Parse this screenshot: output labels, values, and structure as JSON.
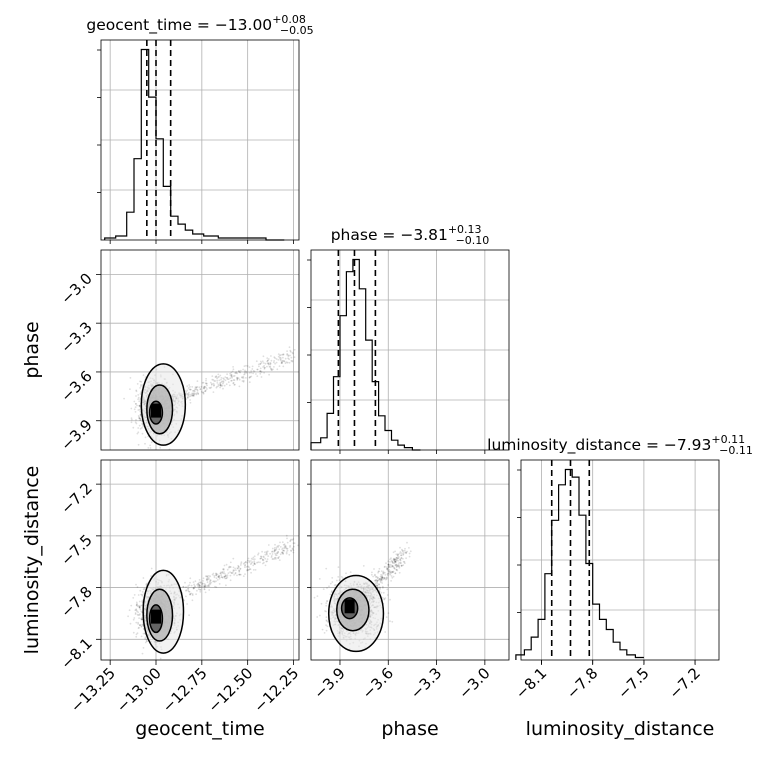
{
  "chart_data": {
    "type": "corner",
    "grid": true,
    "parameters": [
      "geocent_time",
      "phase",
      "luminosity_distance"
    ],
    "titles": [
      {
        "param": "geocent_time",
        "prefix": "geocent_time = ",
        "value": "−13.00",
        "plus": "+0.08",
        "minus": "−0.05"
      },
      {
        "param": "phase",
        "prefix": "phase = ",
        "value": "−3.81",
        "plus": "+0.13",
        "minus": "−0.10"
      },
      {
        "param": "luminosity_distance",
        "prefix": "luminosity_distance = ",
        "value": "−7.93",
        "plus": "+0.11",
        "minus": "−0.11"
      }
    ],
    "axes": {
      "geocent_time": {
        "range": [
          -13.3,
          -12.22
        ],
        "ticks": [
          -13.25,
          -13.0,
          -12.75,
          -12.5,
          -12.25
        ],
        "tick_labels": [
          "−13.25",
          "−13.00",
          "−12.75",
          "−12.50",
          "−12.25"
        ]
      },
      "phase": {
        "range": [
          -4.08,
          -2.85
        ],
        "ticks": [
          -3.9,
          -3.6,
          -3.3,
          -3.0
        ],
        "tick_labels": [
          "−3.9",
          "−3.6",
          "−3.3",
          "−3.0"
        ]
      },
      "luminosity_distance": {
        "range": [
          -8.22,
          -7.06
        ],
        "ticks": [
          -8.1,
          -7.8,
          -7.5,
          -7.2
        ],
        "tick_labels": [
          "−8.1",
          "−7.8",
          "−7.5",
          "−7.2"
        ]
      }
    },
    "histograms": [
      {
        "param": "geocent_time",
        "bin_edges": [
          -13.28,
          -13.22,
          -13.16,
          -13.12,
          -13.08,
          -13.04,
          -13.0,
          -12.96,
          -12.92,
          -12.88,
          -12.84,
          -12.8,
          -12.74,
          -12.66,
          -12.56,
          -12.48,
          -12.4,
          -12.3
        ],
        "counts": [
          1,
          2,
          14,
          41,
          96,
          72,
          51,
          27,
          12,
          8,
          5,
          3,
          2,
          1,
          1,
          1,
          0
        ],
        "quantiles": [
          -13.05,
          -13.0,
          -12.92
        ]
      },
      {
        "param": "phase",
        "bin_edges": [
          -4.08,
          -4.02,
          -3.98,
          -3.94,
          -3.9,
          -3.86,
          -3.82,
          -3.78,
          -3.74,
          -3.7,
          -3.66,
          -3.62,
          -3.58,
          -3.54,
          -3.5,
          -3.45,
          -3.4
        ],
        "counts": [
          3,
          5,
          15,
          30,
          55,
          73,
          78,
          66,
          45,
          28,
          14,
          8,
          4,
          2,
          1,
          0
        ],
        "quantiles": [
          -3.91,
          -3.81,
          -3.68
        ]
      },
      {
        "param": "luminosity_distance",
        "bin_edges": [
          -8.25,
          -8.2,
          -8.16,
          -8.12,
          -8.08,
          -8.04,
          -8.0,
          -7.96,
          -7.92,
          -7.88,
          -7.84,
          -7.8,
          -7.76,
          -7.72,
          -7.68,
          -7.64,
          -7.6,
          -7.55,
          -7.5
        ],
        "counts": [
          2,
          4,
          9,
          16,
          34,
          55,
          69,
          75,
          72,
          57,
          38,
          22,
          16,
          12,
          7,
          4,
          2,
          1
        ],
        "quantiles": [
          -8.04,
          -7.93,
          -7.82
        ]
      }
    ],
    "panels_2d": [
      {
        "x_param": "geocent_time",
        "y_param": "phase",
        "samples": {
          "n": 1500,
          "center": [
            -13.0,
            -3.82
          ],
          "spread": [
            0.05,
            0.08
          ],
          "tail": {
            "from": [
              -12.94,
              -3.78
            ],
            "to": [
              -12.25,
              -3.5
            ],
            "fraction": 0.25
          }
        },
        "contours": [
          {
            "center": [
              -13.0,
              -3.85
            ],
            "radii": [
              0.035,
              0.07
            ]
          },
          {
            "center": [
              -12.98,
              -3.83
            ],
            "radii": [
              0.07,
              0.15
            ]
          },
          {
            "center": [
              -12.96,
              -3.8
            ],
            "radii": [
              0.12,
              0.25
            ]
          }
        ]
      },
      {
        "x_param": "geocent_time",
        "y_param": "luminosity_distance",
        "samples": {
          "n": 1500,
          "center": [
            -13.0,
            -7.95
          ],
          "spread": [
            0.05,
            0.08
          ],
          "tail": {
            "from": [
              -12.9,
              -7.85
            ],
            "to": [
              -12.25,
              -7.55
            ],
            "fraction": 0.25
          }
        },
        "contours": [
          {
            "center": [
              -13.0,
              -7.98
            ],
            "radii": [
              0.035,
              0.08
            ]
          },
          {
            "center": [
              -12.98,
              -7.96
            ],
            "radii": [
              0.07,
              0.15
            ]
          },
          {
            "center": [
              -12.96,
              -7.94
            ],
            "radii": [
              0.11,
              0.24
            ]
          }
        ]
      },
      {
        "x_param": "phase",
        "y_param": "luminosity_distance",
        "samples": {
          "n": 1500,
          "center": [
            -3.82,
            -7.93
          ],
          "spread": [
            0.08,
            0.08
          ],
          "tail": {
            "from": [
              -3.75,
              -7.85
            ],
            "to": [
              -3.5,
              -7.6
            ],
            "fraction": 0.2
          }
        },
        "contours": [
          {
            "center": [
              -3.84,
              -7.92
            ],
            "radii": [
              0.05,
              0.06
            ]
          },
          {
            "center": [
              -3.82,
              -7.93
            ],
            "radii": [
              0.1,
              0.12
            ]
          },
          {
            "center": [
              -3.8,
              -7.95
            ],
            "radii": [
              0.17,
              0.22
            ]
          }
        ]
      }
    ]
  }
}
